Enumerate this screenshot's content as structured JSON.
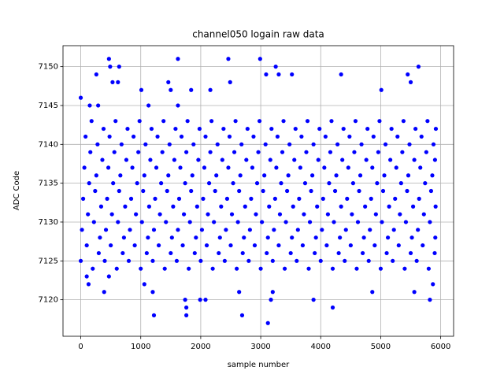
{
  "chart_data": {
    "type": "scatter",
    "title": "channel050 logain raw data",
    "xlabel": "sample number",
    "ylabel": "ADC Code",
    "color": "#0000ff",
    "grid": true,
    "xlim": [
      -296,
      6215
    ],
    "xticks": [
      0,
      1000,
      2000,
      3000,
      4000,
      5000,
      6000
    ],
    "ylim": [
      7115.3,
      7152.7
    ],
    "yticks": [
      7120,
      7125,
      7130,
      7135,
      7140,
      7145,
      7150
    ],
    "x": [
      0,
      100,
      130,
      150,
      260,
      290,
      390,
      470,
      470,
      490,
      530,
      620,
      640,
      1010,
      1060,
      1130,
      1200,
      1220,
      1460,
      1500,
      1620,
      1620,
      1740,
      1760,
      1760,
      1840,
      1990,
      2080,
      2160,
      2460,
      2490,
      2640,
      2690,
      2990,
      3090,
      3120,
      3170,
      3200,
      3250,
      3300,
      3520,
      3880,
      4200,
      4340,
      4860,
      5010,
      5450,
      5500,
      5560,
      5630,
      5820,
      5870,
      0,
      20,
      40,
      60,
      80,
      100,
      120,
      140,
      160,
      180,
      200,
      220,
      240,
      260,
      280,
      300,
      320,
      340,
      360,
      380,
      400,
      420,
      440,
      460,
      480,
      500,
      520,
      540,
      560,
      580,
      600,
      620,
      640,
      660,
      680,
      700,
      720,
      740,
      760,
      780,
      800,
      820,
      840,
      860,
      880,
      900,
      920,
      940,
      960,
      980,
      1000,
      1020,
      1040,
      1060,
      1080,
      1100,
      1120,
      1140,
      1160,
      1180,
      1200,
      1220,
      1240,
      1260,
      1280,
      1300,
      1320,
      1340,
      1360,
      1380,
      1400,
      1420,
      1440,
      1460,
      1480,
      1500,
      1520,
      1540,
      1560,
      1580,
      1600,
      1620,
      1640,
      1660,
      1680,
      1700,
      1720,
      1740,
      1760,
      1780,
      1800,
      1820,
      1840,
      1860,
      1880,
      1900,
      1920,
      1940,
      1960,
      1980,
      2000,
      2020,
      2040,
      2060,
      2080,
      2100,
      2120,
      2140,
      2160,
      2180,
      2200,
      2220,
      2240,
      2260,
      2280,
      2300,
      2320,
      2340,
      2360,
      2380,
      2400,
      2420,
      2440,
      2460,
      2480,
      2500,
      2520,
      2540,
      2560,
      2580,
      2600,
      2620,
      2640,
      2660,
      2680,
      2700,
      2720,
      2740,
      2760,
      2780,
      2800,
      2820,
      2840,
      2860,
      2880,
      2900,
      2920,
      2940,
      2960,
      2980,
      3000,
      3020,
      3040,
      3060,
      3080,
      3100,
      3120,
      3140,
      3160,
      3180,
      3200,
      3220,
      3240,
      3260,
      3280,
      3300,
      3320,
      3340,
      3360,
      3380,
      3400,
      3420,
      3440,
      3460,
      3480,
      3500,
      3520,
      3540,
      3560,
      3580,
      3600,
      3620,
      3640,
      3660,
      3680,
      3700,
      3720,
      3740,
      3760,
      3780,
      3800,
      3820,
      3840,
      3860,
      3880,
      3900,
      3920,
      3940,
      3960,
      3980,
      4000,
      4020,
      4040,
      4060,
      4080,
      4100,
      4120,
      4140,
      4160,
      4180,
      4200,
      4220,
      4240,
      4260,
      4280,
      4300,
      4320,
      4340,
      4360,
      4380,
      4400,
      4420,
      4440,
      4460,
      4480,
      4500,
      4520,
      4540,
      4560,
      4580,
      4600,
      4620,
      4640,
      4660,
      4680,
      4700,
      4720,
      4740,
      4760,
      4780,
      4800,
      4820,
      4840,
      4860,
      4880,
      4900,
      4920,
      4940,
      4960,
      4980,
      5000,
      5020,
      5040,
      5060,
      5080,
      5100,
      5120,
      5140,
      5160,
      5180,
      5200,
      5220,
      5240,
      5260,
      5280,
      5300,
      5320,
      5340,
      5360,
      5380,
      5400,
      5420,
      5440,
      5460,
      5480,
      5500,
      5520,
      5540,
      5560,
      5580,
      5600,
      5620,
      5640,
      5660,
      5680,
      5700,
      5720,
      5740,
      5760,
      5780,
      5800,
      5820,
      5840,
      5860,
      5880,
      5900,
      5910,
      5915,
      5905,
      5919
    ],
    "values": [
      7146,
      7123,
      7122,
      7145,
      7149,
      7145,
      7121,
      7123,
      7151,
      7150,
      7148,
      7148,
      7150,
      7147,
      7122,
      7145,
      7121,
      7118,
      7148,
      7147,
      7151,
      7145,
      7120,
      7118,
      7119,
      7147,
      7120,
      7120,
      7147,
      7151,
      7148,
      7121,
      7118,
      7151,
      7149,
      7117,
      7120,
      7121,
      7150,
      7149,
      7149,
      7120,
      7119,
      7149,
      7121,
      7147,
      7149,
      7148,
      7121,
      7150,
      7120,
      7122,
      7125,
      7129,
      7133,
      7137,
      7141,
      7127,
      7131,
      7135,
      7139,
      7143,
      7124,
      7130,
      7134,
      7136,
      7140,
      7126,
      7128,
      7132,
      7138,
      7142,
      7125,
      7129,
      7133,
      7137,
      7141,
      7127,
      7131,
      7135,
      7139,
      7143,
      7124,
      7130,
      7134,
      7136,
      7140,
      7126,
      7128,
      7132,
      7138,
      7142,
      7125,
      7129,
      7133,
      7137,
      7141,
      7127,
      7131,
      7135,
      7139,
      7143,
      7124,
      7130,
      7134,
      7136,
      7140,
      7126,
      7128,
      7132,
      7138,
      7142,
      7125,
      7129,
      7133,
      7137,
      7141,
      7127,
      7131,
      7135,
      7139,
      7143,
      7124,
      7130,
      7134,
      7136,
      7140,
      7126,
      7128,
      7132,
      7138,
      7142,
      7125,
      7129,
      7133,
      7137,
      7141,
      7127,
      7131,
      7135,
      7139,
      7143,
      7124,
      7130,
      7134,
      7136,
      7140,
      7126,
      7128,
      7132,
      7138,
      7142,
      7125,
      7129,
      7133,
      7137,
      7141,
      7127,
      7131,
      7135,
      7139,
      7143,
      7124,
      7130,
      7134,
      7136,
      7140,
      7126,
      7128,
      7132,
      7138,
      7142,
      7125,
      7129,
      7133,
      7137,
      7141,
      7127,
      7131,
      7135,
      7139,
      7143,
      7124,
      7130,
      7134,
      7136,
      7140,
      7126,
      7128,
      7132,
      7138,
      7142,
      7125,
      7129,
      7133,
      7137,
      7141,
      7127,
      7131,
      7135,
      7139,
      7143,
      7124,
      7130,
      7134,
      7136,
      7140,
      7126,
      7128,
      7132,
      7138,
      7142,
      7125,
      7129,
      7133,
      7137,
      7141,
      7127,
      7131,
      7135,
      7139,
      7143,
      7124,
      7130,
      7134,
      7136,
      7140,
      7126,
      7128,
      7132,
      7138,
      7142,
      7125,
      7129,
      7133,
      7137,
      7141,
      7127,
      7131,
      7135,
      7139,
      7143,
      7124,
      7130,
      7134,
      7136,
      7140,
      7126,
      7128,
      7132,
      7138,
      7142,
      7125,
      7129,
      7133,
      7137,
      7141,
      7127,
      7131,
      7135,
      7139,
      7143,
      7124,
      7130,
      7134,
      7136,
      7140,
      7126,
      7128,
      7132,
      7138,
      7142,
      7125,
      7129,
      7133,
      7137,
      7141,
      7127,
      7131,
      7135,
      7139,
      7143,
      7124,
      7130,
      7134,
      7136,
      7140,
      7126,
      7128,
      7132,
      7138,
      7142,
      7125,
      7129,
      7133,
      7137,
      7141,
      7127,
      7131,
      7135,
      7139,
      7143,
      7124,
      7130,
      7134,
      7136,
      7140,
      7126,
      7128,
      7132,
      7138,
      7142,
      7125,
      7129,
      7133,
      7137,
      7141,
      7127,
      7131,
      7135,
      7139,
      7143,
      7124,
      7130,
      7134,
      7136,
      7140,
      7126,
      7128,
      7132,
      7138,
      7142,
      7125,
      7129,
      7133,
      7137,
      7141,
      7127,
      7131,
      7135,
      7139,
      7143,
      7124,
      7130,
      7134,
      7136,
      7140,
      7126,
      7128,
      7132,
      7138,
      7142
    ]
  }
}
